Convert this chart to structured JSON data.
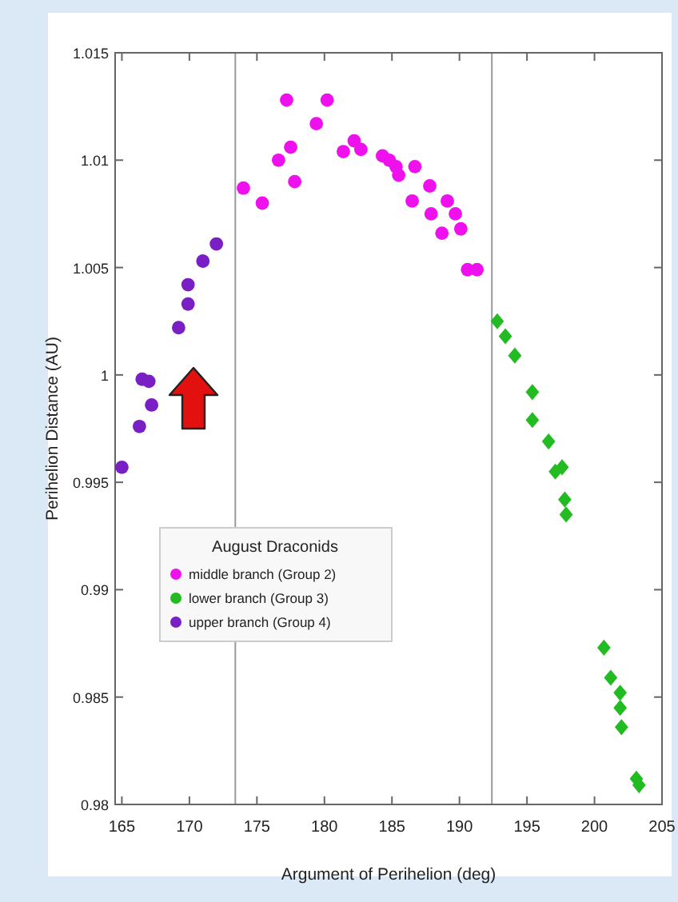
{
  "chart_data": {
    "type": "scatter",
    "xlabel": "Argument of Perihelion (deg)",
    "ylabel": "Perihelion Distance (AU)",
    "legend_title": "August Draconids",
    "legend": "left",
    "grid": false,
    "xlim": [
      164.5,
      205
    ],
    "xticks": [
      165,
      170,
      175,
      180,
      185,
      190,
      195,
      200,
      205
    ],
    "ylim": [
      0.98,
      1.015
    ],
    "yticks": [
      0.98,
      0.985,
      0.99,
      0.995,
      1,
      1.005,
      1.01,
      1.015
    ],
    "ref_lines": [
      {
        "axis": "x",
        "value": 173.4,
        "color": "#999999"
      },
      {
        "axis": "x",
        "value": 192.4,
        "color": "#999999"
      }
    ],
    "series": [
      {
        "name": "middle branch (Group 2)",
        "color": "#ee11ee",
        "marker": "circle",
        "x": [
          174.0,
          175.4,
          177.2,
          176.6,
          177.5,
          177.8,
          179.4,
          180.2,
          181.4,
          182.2,
          182.7,
          184.3,
          184.8,
          185.3,
          185.5,
          186.7,
          186.5,
          187.8,
          187.9,
          189.1,
          189.7,
          188.7,
          190.1,
          190.6,
          191.3
        ],
        "values": [
          1.0087,
          1.008,
          1.0128,
          1.01,
          1.0106,
          1.009,
          1.0117,
          1.0128,
          1.0104,
          1.0109,
          1.0105,
          1.0102,
          1.01,
          1.0097,
          1.0093,
          1.0097,
          1.0081,
          1.0088,
          1.0075,
          1.0081,
          1.0075,
          1.0066,
          1.0068,
          1.0049,
          1.0049
        ]
      },
      {
        "name": "lower branch (Group 3)",
        "color": "#22bb22",
        "marker": "diamond",
        "x": [
          192.8,
          193.4,
          194.1,
          195.4,
          195.4,
          196.6,
          197.1,
          197.6,
          197.8,
          197.9,
          200.7,
          201.2,
          201.9,
          201.9,
          202.0,
          203.1,
          203.3
        ],
        "values": [
          1.0025,
          1.0018,
          1.0009,
          0.9992,
          0.9979,
          0.9969,
          0.9955,
          0.9957,
          0.9942,
          0.9935,
          0.9873,
          0.9859,
          0.9852,
          0.9845,
          0.9836,
          0.9812,
          0.9809
        ]
      },
      {
        "name": "upper branch (Group 4)",
        "color": "#7a1fc4",
        "marker": "circle",
        "x": [
          165.0,
          166.3,
          166.5,
          167.0,
          167.2,
          169.2,
          169.9,
          169.9,
          171.0,
          172.0
        ],
        "values": [
          0.9957,
          0.9976,
          0.9998,
          0.9997,
          0.9986,
          1.0022,
          1.0033,
          1.0042,
          1.0053,
          1.0061
        ]
      }
    ]
  }
}
